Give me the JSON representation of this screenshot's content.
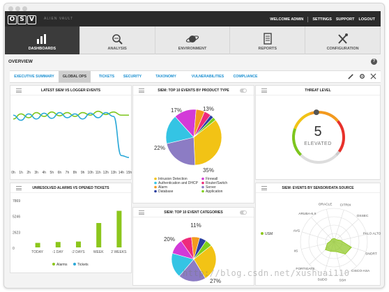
{
  "app": {
    "logo": "OSV",
    "logo_text": "ALIEN VAULT"
  },
  "top_links": [
    "WELCOME ADMIN",
    "SETTINGS",
    "SUPPORT",
    "LOGOUT"
  ],
  "nav": [
    {
      "label": "DASHBOARDS",
      "icon": "bar-chart-icon",
      "active": true
    },
    {
      "label": "ANALYSIS",
      "icon": "magnifier-icon",
      "active": false
    },
    {
      "label": "ENVIRONMENT",
      "icon": "planet-icon",
      "active": false
    },
    {
      "label": "REPORTS",
      "icon": "document-icon",
      "active": false
    },
    {
      "label": "CONFIGURATION",
      "icon": "tools-icon",
      "active": false
    }
  ],
  "overview": {
    "title": "OVERVIEW",
    "help": "?"
  },
  "tabs": [
    {
      "label": "EXECUTIVE SUMMARY",
      "active": false
    },
    {
      "label": "GLOBAL OPS",
      "active": true
    },
    {
      "label": "TICKETS",
      "active": false
    },
    {
      "label": "SECURITY",
      "active": false
    },
    {
      "label": "TAXONOMY",
      "active": false
    },
    {
      "label": "VULNERABILITIES",
      "active": false
    },
    {
      "label": "COMPLIANCE",
      "active": false
    }
  ],
  "panels": {
    "latest": {
      "title": "LATEST SIEM VS LOGGER EVENTS"
    },
    "product": {
      "title": "SIEM: TOP 10 EVENTS BY PRODUCT TYPE"
    },
    "threat": {
      "title": "THREAT LEVEL",
      "value": "5",
      "label": "ELEVATED"
    },
    "alarms": {
      "title": "UNRESOLVED ALARMS VS OPENED TICKETS"
    },
    "categories": {
      "title": "SIEM: TOP 10 EVENT CATEGORIES"
    },
    "sensor": {
      "title": "SIEM: EVENTS BY SENSOR/DATA SOURCE"
    }
  },
  "chart_data": [
    {
      "type": "line",
      "title": "LATEST SIEM VS LOGGER EVENTS",
      "categories": [
        "0h",
        "1h",
        "2h",
        "3h",
        "4h",
        "5h",
        "6h",
        "7h",
        "8h",
        "9h",
        "10h",
        "11h",
        "12h",
        "13h",
        "14h",
        "15h"
      ],
      "series": [
        {
          "color": "#7dc61d",
          "values": [
            72,
            80,
            74,
            82,
            76,
            83,
            77,
            82,
            76,
            82,
            78,
            84,
            79,
            83,
            78,
            78
          ]
        },
        {
          "color": "#2aa8d8",
          "values": [
            78,
            70,
            80,
            72,
            81,
            73,
            82,
            74,
            80,
            72,
            81,
            74,
            82,
            76,
            15,
            12
          ]
        }
      ]
    },
    {
      "type": "pie",
      "title": "SIEM: TOP 10 EVENTS BY PRODUCT TYPE",
      "slices": [
        {
          "label": "Intrusion Detection",
          "value": 35,
          "color": "#f2c315"
        },
        {
          "label": "Server",
          "value": 22,
          "color": "#8c7cc4"
        },
        {
          "label": "Authentication and DHCP",
          "value": 17,
          "color": "#34c4e4"
        },
        {
          "label": "Firewall",
          "value": 13,
          "color": "#d33ad8"
        },
        {
          "label": "Alarm",
          "value": 5,
          "color": "#f39a1e"
        },
        {
          "label": "Router/Switch",
          "value": 4,
          "color": "#ee2a7b"
        },
        {
          "label": "Database",
          "value": 2,
          "color": "#2b3fa0"
        },
        {
          "label": "Application",
          "value": 2,
          "color": "#7fd01a"
        }
      ],
      "shown_labels": [
        "17%",
        "13%",
        "22%",
        "35%"
      ]
    },
    {
      "type": "bar",
      "title": "UNRESOLVED ALARMS VS OPENED TICKETS",
      "categories": [
        "TODAY",
        "-1 DAY",
        "-2 DAYS",
        "WEEK",
        "2 WEEKS"
      ],
      "series": [
        {
          "name": "Alarms",
          "color": "#8cc61c",
          "values": [
            1000,
            1200,
            1300,
            5400,
            8100
          ]
        },
        {
          "name": "Tickets",
          "color": "#2aa8d8",
          "values": [
            0,
            0,
            0,
            0,
            0
          ]
        }
      ],
      "ytick_labels": [
        "7869",
        "5246",
        "2623",
        "0"
      ],
      "ylim": [
        0,
        10492
      ]
    },
    {
      "type": "pie",
      "title": "SIEM: TOP 10 EVENT CATEGORIES",
      "slices": [
        {
          "label": "",
          "value": 27,
          "color": "#f2c315"
        },
        {
          "label": "",
          "value": 20,
          "color": "#8c7cc4"
        },
        {
          "label": "",
          "value": 18,
          "color": "#34c4e4"
        },
        {
          "label": "",
          "value": 11,
          "color": "#d33ad8"
        },
        {
          "label": "",
          "value": 8,
          "color": "#ee2a7b"
        },
        {
          "label": "",
          "value": 6,
          "color": "#f39a1e"
        },
        {
          "label": "",
          "value": 5,
          "color": "#2b3fa0"
        },
        {
          "label": "",
          "value": 5,
          "color": "#7fd01a"
        }
      ],
      "shown_labels": [
        "11%",
        "20%",
        "27%"
      ]
    },
    {
      "type": "radar",
      "title": "SIEM: EVENTS BY SENSOR/DATA SOURCE",
      "axes": [
        "CITRIX",
        "OSSEC",
        "PALO ALTO",
        "SNORT",
        "CISCO-ASA",
        "SSH",
        "SUDO",
        "FORTIGATE",
        "IIS",
        "AVG",
        "ARUBA-6.X",
        "ORACLE"
      ],
      "series": [
        {
          "name": "USM",
          "color": "#8cc61c",
          "values": [
            0.1,
            0.1,
            0.2,
            0.55,
            0.5,
            0.3,
            0.3,
            0.35,
            0.2,
            0.1,
            0.1,
            0.1
          ]
        }
      ]
    }
  ],
  "gauge": {
    "value": 5,
    "max": 10
  },
  "watermark": "http://blog.csdn.net/xushuai110"
}
